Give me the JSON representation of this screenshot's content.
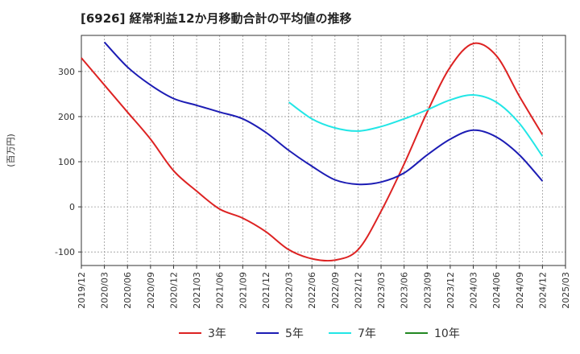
{
  "chart_data": {
    "type": "line",
    "title": "[6926]  経常利益12か月移動合計の平均値の推移",
    "ylabel": "(百万円)",
    "xlabel": "",
    "ylim": [
      -130,
      380
    ],
    "yticks": [
      -100,
      0,
      100,
      200,
      300
    ],
    "x_ticks": [
      "2019/12",
      "2020/03",
      "2020/06",
      "2020/09",
      "2020/12",
      "2021/03",
      "2021/06",
      "2021/09",
      "2021/12",
      "2022/03",
      "2022/06",
      "2022/09",
      "2022/12",
      "2023/03",
      "2023/06",
      "2023/09",
      "2023/12",
      "2024/03",
      "2024/06",
      "2024/09",
      "2024/12",
      "2025/03"
    ],
    "grid": true,
    "legend_position": "bottom",
    "series": [
      {
        "name": "3年",
        "color": "#dd2222",
        "x": [
          "2019/12",
          "2020/03",
          "2020/06",
          "2020/09",
          "2020/12",
          "2021/03",
          "2021/06",
          "2021/09",
          "2021/12",
          "2022/03",
          "2022/06",
          "2022/09",
          "2022/12",
          "2023/03",
          "2023/06",
          "2023/09",
          "2023/12",
          "2024/03",
          "2024/06",
          "2024/09",
          "2024/12"
        ],
        "values": [
          330,
          270,
          210,
          150,
          80,
          35,
          -5,
          -25,
          -55,
          -95,
          -115,
          -118,
          -95,
          -10,
          95,
          210,
          310,
          362,
          335,
          245,
          160
        ]
      },
      {
        "name": "5年",
        "color": "#1c1cb4",
        "x": [
          "2020/03",
          "2020/06",
          "2020/09",
          "2020/12",
          "2021/03",
          "2021/06",
          "2021/09",
          "2021/12",
          "2022/03",
          "2022/06",
          "2022/09",
          "2022/12",
          "2023/03",
          "2023/06",
          "2023/09",
          "2023/12",
          "2024/03",
          "2024/06",
          "2024/09",
          "2024/12"
        ],
        "values": [
          365,
          310,
          270,
          240,
          225,
          210,
          195,
          165,
          125,
          90,
          60,
          50,
          55,
          75,
          115,
          150,
          170,
          155,
          115,
          57
        ]
      },
      {
        "name": "7年",
        "color": "#22e6e6",
        "x": [
          "2022/03",
          "2022/06",
          "2022/09",
          "2022/12",
          "2023/03",
          "2023/06",
          "2023/09",
          "2023/12",
          "2024/03",
          "2024/06",
          "2024/09",
          "2024/12"
        ],
        "values": [
          232,
          195,
          175,
          168,
          178,
          195,
          215,
          237,
          248,
          232,
          185,
          112
        ]
      },
      {
        "name": "10年",
        "color": "#228822",
        "x": [],
        "values": []
      }
    ]
  }
}
